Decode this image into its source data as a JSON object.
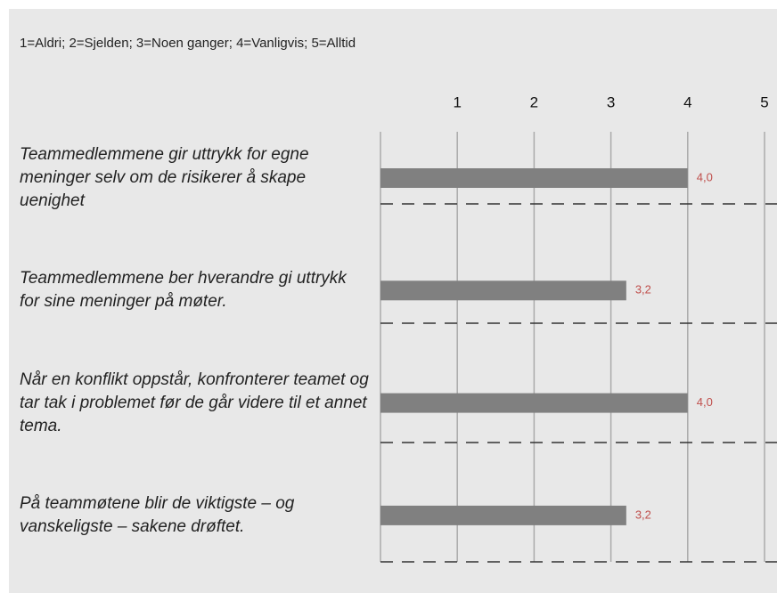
{
  "chart_data": {
    "type": "hbar",
    "subtitle": "1=Aldri; 2=Sjelden; 3=Noen ganger; 4=Vanligvis; 5=Alltid",
    "categories": [
      "Teammedlemmene gir uttrykk for egne meninger selv om de risikerer å skape uenighet",
      "Teammedlemmene ber hverandre gi uttrykk for sine meninger på møter.",
      "Når en konflikt oppstår, konfronterer teamet og tar tak i problemet før de går videre til et annet tema.",
      "På teammøtene blir de viktigste – og vanskeligste – sakene drøftet."
    ],
    "values": [
      4.0,
      3.2,
      4.0,
      3.2
    ],
    "value_labels": [
      "4,0",
      "3,2",
      "4,0",
      "3,2"
    ],
    "color": "#808080",
    "label_color": "#c0504d",
    "xlim": [
      0,
      5
    ],
    "xticks": [
      1,
      2,
      3,
      4,
      5
    ],
    "grid": true
  }
}
